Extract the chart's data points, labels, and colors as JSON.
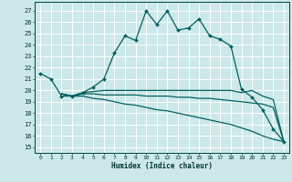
{
  "xlabel": "Humidex (Indice chaleur)",
  "xlim": [
    -0.5,
    23.5
  ],
  "ylim": [
    14.5,
    27.8
  ],
  "yticks": [
    15,
    16,
    17,
    18,
    19,
    20,
    21,
    22,
    23,
    24,
    25,
    26,
    27
  ],
  "xticks": [
    0,
    1,
    2,
    3,
    4,
    5,
    6,
    7,
    8,
    9,
    10,
    11,
    12,
    13,
    14,
    15,
    16,
    17,
    18,
    19,
    20,
    21,
    22,
    23
  ],
  "bg_color": "#cce8e8",
  "grid_color": "#ffffff",
  "line_color": "#006060",
  "line1_x": [
    0,
    1,
    2,
    3,
    4,
    5,
    6,
    7,
    8,
    9,
    10,
    11,
    12,
    13,
    14,
    15,
    16,
    17,
    18,
    19,
    20,
    21,
    22,
    23
  ],
  "line1_y": [
    21.5,
    21.0,
    19.5,
    19.5,
    19.8,
    20.3,
    21.0,
    23.3,
    24.8,
    24.4,
    27.0,
    25.8,
    27.0,
    25.3,
    25.5,
    26.3,
    24.8,
    24.5,
    23.9,
    20.1,
    19.4,
    18.3,
    16.6,
    15.5
  ],
  "line2_x": [
    2,
    3,
    4,
    5,
    6,
    7,
    8,
    9,
    10,
    11,
    12,
    13,
    14,
    15,
    16,
    17,
    18,
    19,
    20,
    21,
    22,
    23
  ],
  "line2_y": [
    19.7,
    19.5,
    19.8,
    19.9,
    20.0,
    20.0,
    20.0,
    20.0,
    20.0,
    20.0,
    20.0,
    20.0,
    20.0,
    20.0,
    20.0,
    20.0,
    20.0,
    19.8,
    20.0,
    19.5,
    19.2,
    15.5
  ],
  "line3_x": [
    2,
    3,
    4,
    5,
    6,
    7,
    8,
    9,
    10,
    11,
    12,
    13,
    14,
    15,
    16,
    17,
    18,
    19,
    20,
    21,
    22,
    23
  ],
  "line3_y": [
    19.7,
    19.5,
    19.7,
    19.7,
    19.6,
    19.6,
    19.6,
    19.6,
    19.5,
    19.5,
    19.5,
    19.4,
    19.4,
    19.3,
    19.3,
    19.2,
    19.1,
    19.0,
    18.9,
    18.8,
    18.5,
    15.5
  ],
  "line4_x": [
    2,
    3,
    4,
    5,
    6,
    7,
    8,
    9,
    10,
    11,
    12,
    13,
    14,
    15,
    16,
    17,
    18,
    19,
    20,
    21,
    22,
    23
  ],
  "line4_y": [
    19.7,
    19.5,
    19.5,
    19.3,
    19.2,
    19.0,
    18.8,
    18.7,
    18.5,
    18.3,
    18.2,
    18.0,
    17.8,
    17.6,
    17.4,
    17.2,
    17.0,
    16.7,
    16.4,
    16.0,
    15.7,
    15.5
  ]
}
